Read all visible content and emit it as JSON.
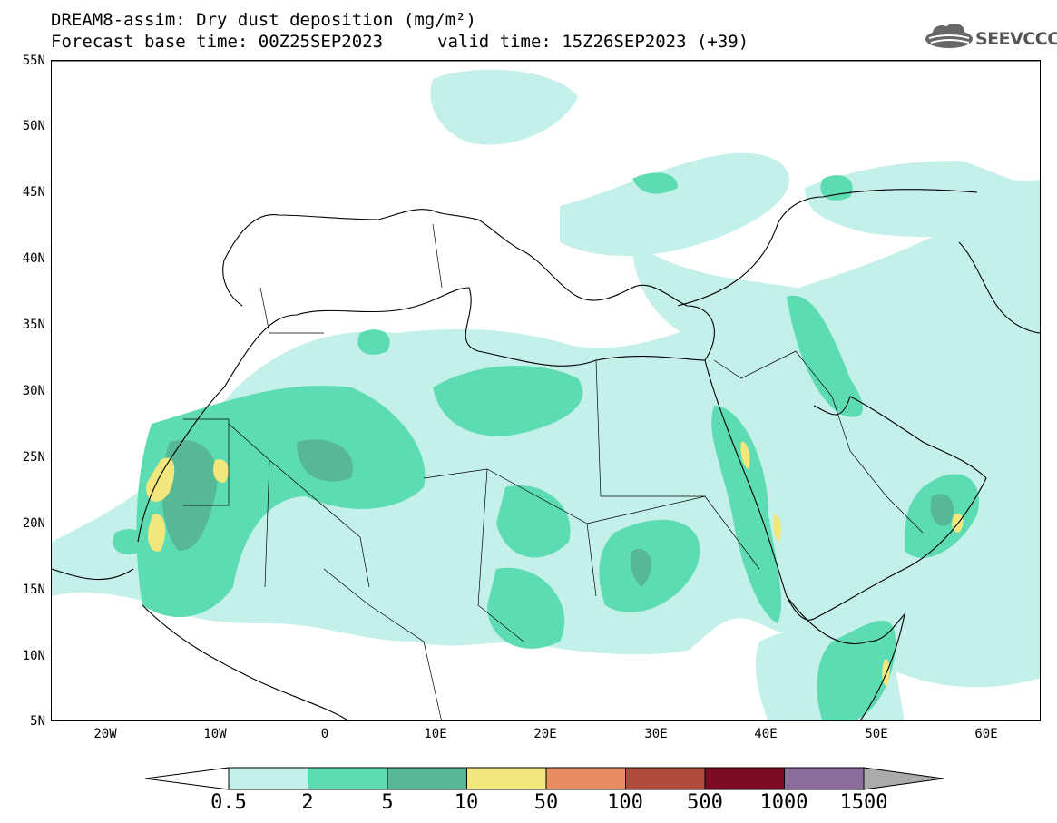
{
  "title": {
    "line1": "DREAM8-assim: Dry dust deposition (mg/m²)",
    "base": "Forecast base time: 00Z25SEP2023",
    "valid": "valid time: 15Z26SEP2023 (+39)"
  },
  "logo": {
    "text": "SEEVCCC",
    "icon": "cloud-icon"
  },
  "axes": {
    "lat_labels": [
      "55N",
      "50N",
      "45N",
      "40N",
      "35N",
      "30N",
      "25N",
      "20N",
      "15N",
      "10N",
      "5N"
    ],
    "lon_labels": [
      "20W",
      "10W",
      "0",
      "10E",
      "20E",
      "30E",
      "40E",
      "50E",
      "60E"
    ]
  },
  "colorbar": {
    "labels": [
      "0.5",
      "2",
      "5",
      "10",
      "50",
      "100",
      "500",
      "1000",
      "1500"
    ],
    "colors": [
      "#c3f0e8",
      "#5ddcb4",
      "#56b894",
      "#f2e77c",
      "#e88c64",
      "#b04a3c",
      "#7c0a24",
      "#8c6c9c",
      "#aaaaaa"
    ]
  },
  "map": {
    "lon_range": [
      -25,
      65
    ],
    "lat_range": [
      5,
      55
    ]
  }
}
